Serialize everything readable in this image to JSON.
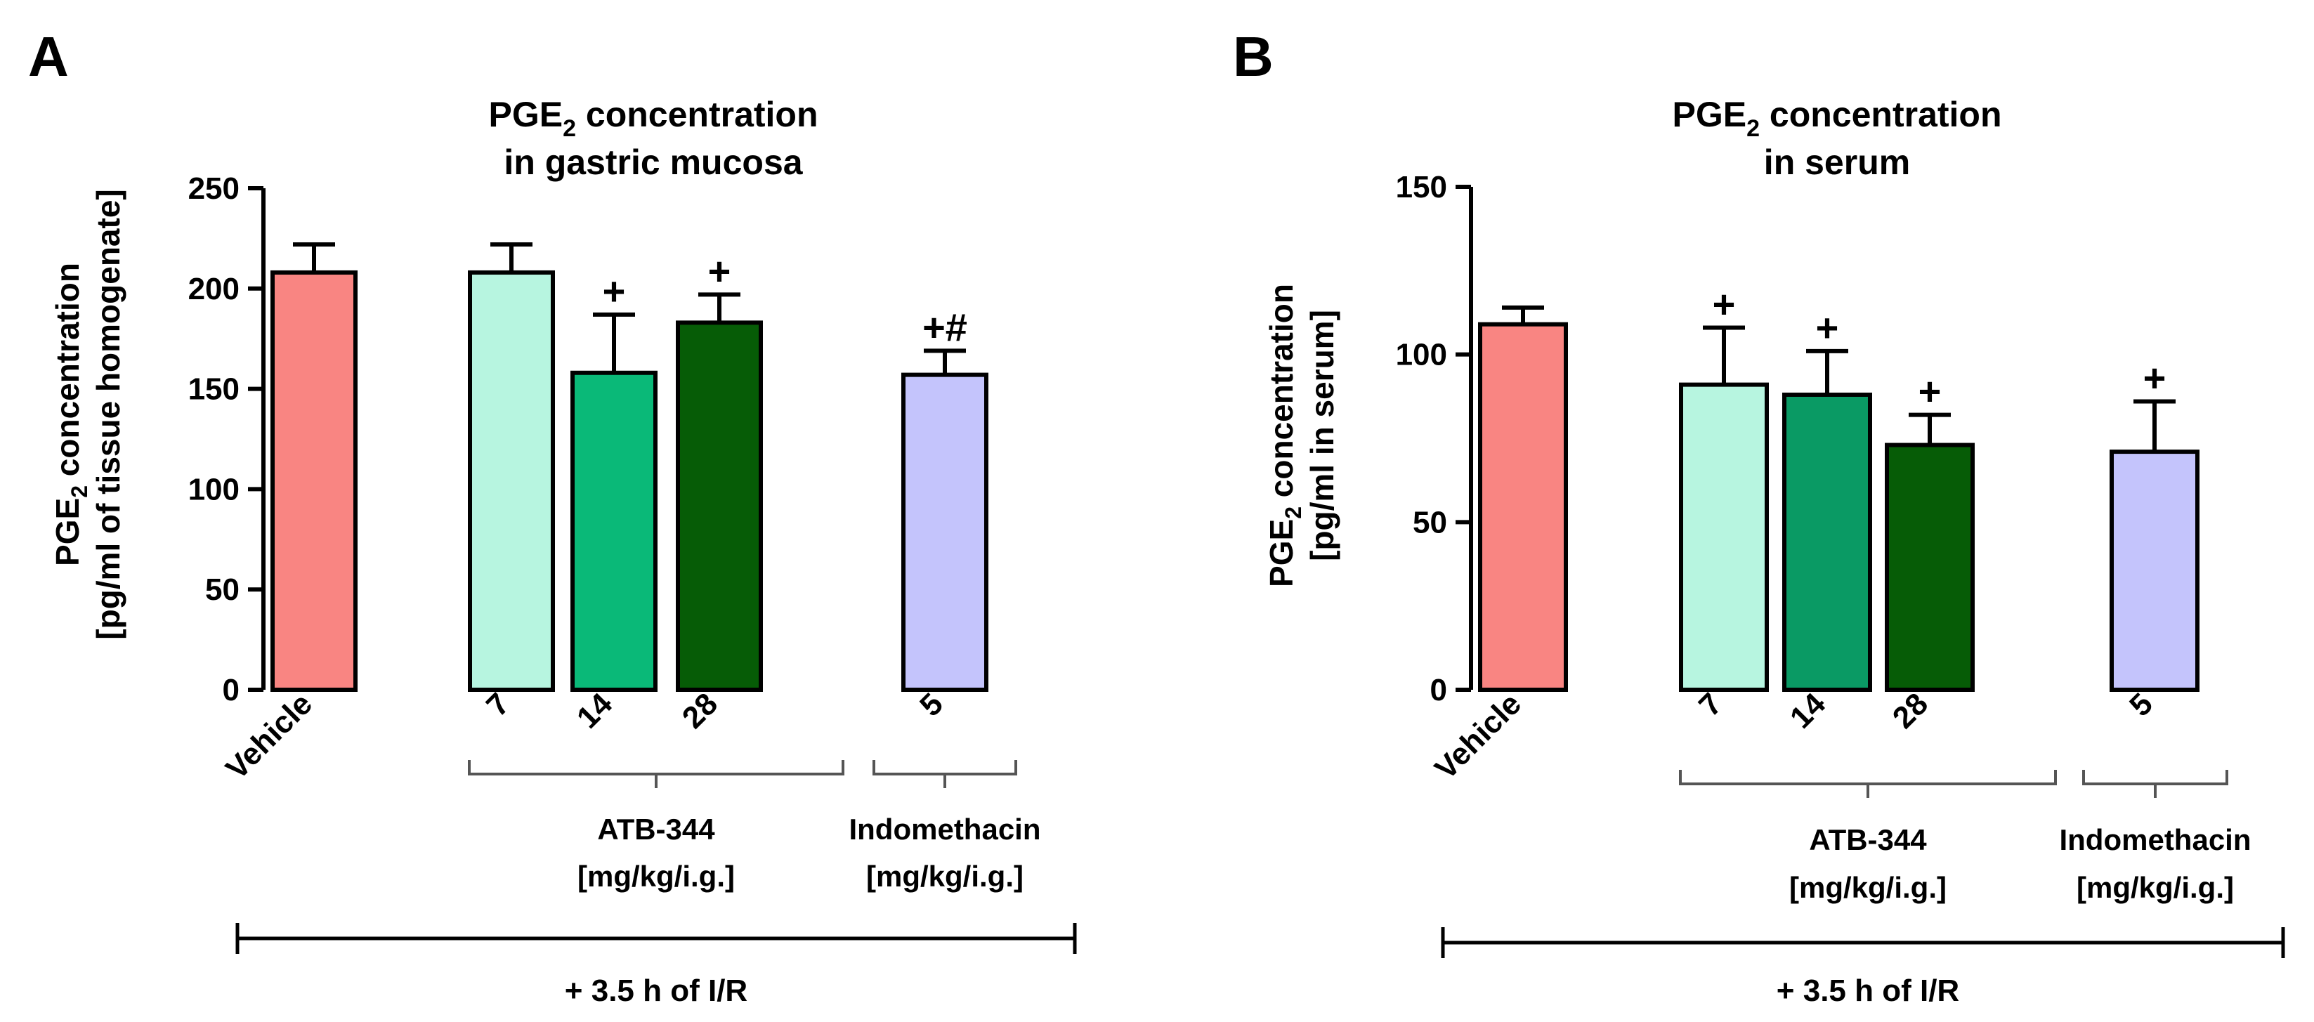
{
  "figure": {
    "footer_label": "+ 3.5 h of I/R"
  },
  "chart_data": [
    {
      "panel": "A",
      "type": "bar",
      "title": "PGE2 concentration in gastric mucosa",
      "title_line1_prefix": "PGE",
      "title_line1_sub": "2",
      "title_line1_suffix": " concentration",
      "title_line2": "in gastric mucosa",
      "ylabel_line1_prefix": "PGE",
      "ylabel_line1_sub": "2",
      "ylabel_line1_suffix": " concentration",
      "ylabel_line2": "[pg/ml of tissue homogenate]",
      "ylim": [
        0,
        250
      ],
      "yticks": [
        0,
        50,
        100,
        150,
        200,
        250
      ],
      "categories": [
        "Vehicle",
        "7",
        "14",
        "28",
        "5"
      ],
      "values": [
        208,
        208,
        158,
        183,
        157
      ],
      "errors": [
        14,
        14,
        29,
        14,
        12
      ],
      "colors": [
        "#f98582",
        "#b7f5e0",
        "#0ab978",
        "#065c06",
        "#c4c4fc"
      ],
      "significance": [
        "",
        "",
        "+",
        "+",
        "+#"
      ],
      "groups": [
        {
          "name": "ATB-344",
          "unit": "[mg/kg/i.g.]",
          "members": [
            1,
            2,
            3
          ]
        },
        {
          "name": "Indomethacin",
          "unit": "[mg/kg/i.g.]",
          "members": [
            4
          ]
        }
      ]
    },
    {
      "panel": "B",
      "type": "bar",
      "title": "PGE2 concentration in serum",
      "title_line1_prefix": "PGE",
      "title_line1_sub": "2",
      "title_line1_suffix": " concentration",
      "title_line2": "in serum",
      "ylabel_line1_prefix": "PGE",
      "ylabel_line1_sub": "2",
      "ylabel_line1_suffix": " concentration",
      "ylabel_line2": "[pg/ml in serum]",
      "ylim": [
        0,
        150
      ],
      "yticks": [
        0,
        50,
        100,
        150
      ],
      "categories": [
        "Vehicle",
        "7",
        "14",
        "28",
        "5"
      ],
      "values": [
        109,
        91,
        88,
        73,
        71
      ],
      "errors": [
        5,
        17,
        13,
        9,
        15
      ],
      "colors": [
        "#f98582",
        "#b7f5e0",
        "#0a9a64",
        "#065c06",
        "#c4c4fc"
      ],
      "significance": [
        "",
        "+",
        "+",
        "+",
        "+"
      ],
      "groups": [
        {
          "name": "ATB-344",
          "unit": "[mg/kg/i.g.]",
          "members": [
            1,
            2,
            3
          ]
        },
        {
          "name": "Indomethacin",
          "unit": "[mg/kg/i.g.]",
          "members": [
            4
          ]
        }
      ]
    }
  ]
}
